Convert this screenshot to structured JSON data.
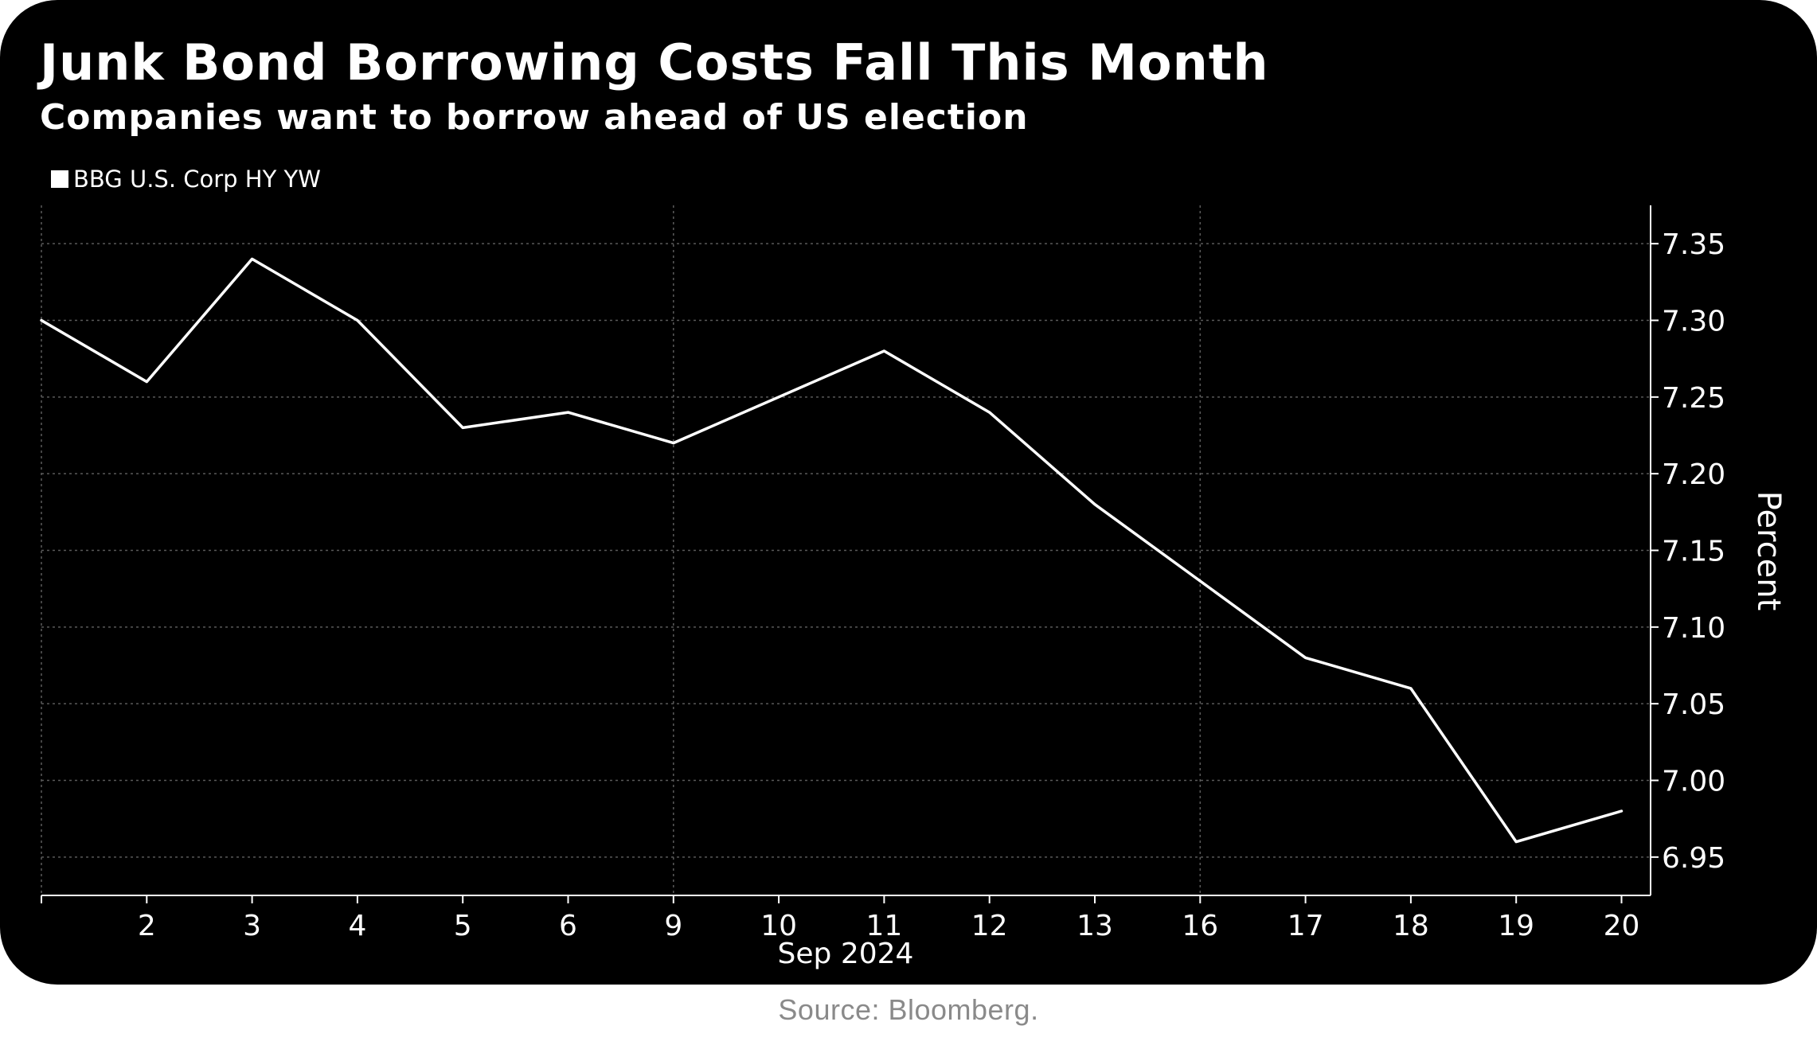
{
  "chart_data": {
    "type": "line",
    "title": "Junk Bond Borrowing Costs Fall This Month",
    "subtitle": "Companies want to borrow ahead of US election",
    "series": [
      {
        "name": "BBG U.S. Corp HY YW",
        "values": [
          7.3,
          7.26,
          7.34,
          7.3,
          7.23,
          7.24,
          7.22,
          7.25,
          7.28,
          7.24,
          7.18,
          7.13,
          7.08,
          7.06,
          6.96,
          6.98
        ]
      }
    ],
    "categories": [
      "",
      "2",
      "3",
      "4",
      "5",
      "6",
      "9",
      "10",
      "11",
      "12",
      "13",
      "16",
      "17",
      "18",
      "19",
      "20"
    ],
    "xlabel": "Sep 2024",
    "ylabel": "Percent",
    "ylim": [
      6.925,
      7.375
    ],
    "yticks": [
      "6.95",
      "7.00",
      "7.05",
      "7.10",
      "7.15",
      "7.20",
      "7.25",
      "7.30",
      "7.35"
    ],
    "y_axis_position": "right",
    "vertical_grid_categories": [
      "",
      "9",
      "16"
    ],
    "legend_position": "top-left",
    "grid": true,
    "colors": {
      "background": "#000000",
      "line": "#ffffff",
      "grid": "#5a5a5a",
      "text": "#ffffff"
    }
  },
  "source": "Source: Bloomberg."
}
